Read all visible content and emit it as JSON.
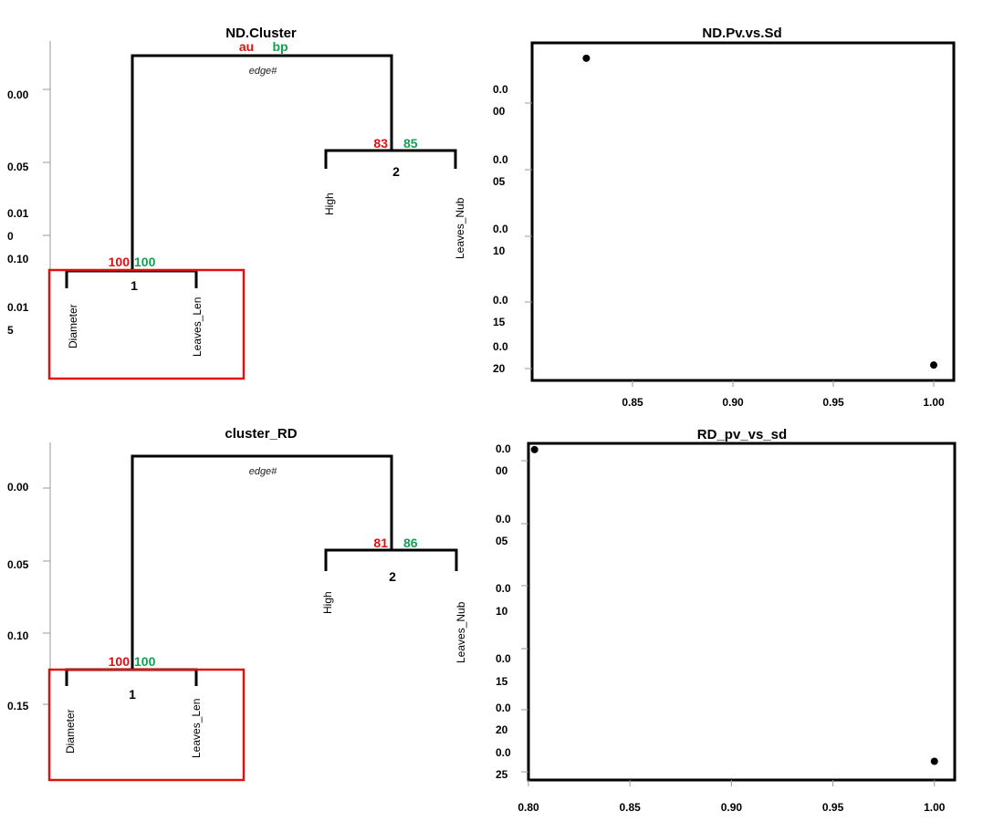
{
  "chart_data": [
    {
      "type": "dendrogram",
      "title": "ND.Cluster",
      "yticks": [
        "0.00",
        "0.05",
        "0.01\n0",
        "0.10",
        "0.01\n5"
      ],
      "edge_label": "edge#",
      "header_labels": {
        "au": "au",
        "bp": "bp"
      },
      "leaves": [
        "Diameter",
        "Leaves_Len",
        "High",
        "Leaves_Nub"
      ],
      "clusters": [
        {
          "id": "1",
          "au": "100",
          "bp": "100",
          "members": [
            "Diameter",
            "Leaves_Len"
          ]
        },
        {
          "id": "2",
          "au": "83",
          "bp": "85",
          "members": [
            "High",
            "Leaves_Nub"
          ]
        }
      ],
      "highlighted_cluster": "1"
    },
    {
      "type": "scatter",
      "title": "ND.Pv.vs.Sd",
      "xticks": [
        "0.85",
        "0.90",
        "0.95",
        "1.00"
      ],
      "yticks": [
        "0.0\n00",
        "0.0\n05",
        "0.0\n10",
        "0.0\n15",
        "0.0\n20"
      ],
      "xlim": [
        0.8,
        1.01
      ],
      "ylim": [
        0.021,
        -0.001
      ],
      "points": [
        {
          "x": 0.827,
          "y": 0.0
        },
        {
          "x": 1.0,
          "y": 0.02
        }
      ]
    },
    {
      "type": "dendrogram",
      "title": "cluster_RD",
      "yticks": [
        "0.00",
        "0.05",
        "0.10",
        "0.15"
      ],
      "edge_label": "edge#",
      "leaves": [
        "Diameter",
        "Leaves_Len",
        "High",
        "Leaves_Nub"
      ],
      "clusters": [
        {
          "id": "1",
          "au": "100",
          "bp": "100",
          "members": [
            "Diameter",
            "Leaves_Len"
          ]
        },
        {
          "id": "2",
          "au": "81",
          "bp": "86",
          "members": [
            "High",
            "Leaves_Nub"
          ]
        }
      ],
      "highlighted_cluster": "1"
    },
    {
      "type": "scatter",
      "title": "RD_pv_vs_sd",
      "xticks": [
        "0.80",
        "0.85",
        "0.90",
        "0.95",
        "1.00"
      ],
      "yticks": [
        "0.0\n00",
        "0.0\n05",
        "0.0\n10",
        "0.0\n15",
        "0.0\n20",
        "0.0\n25"
      ],
      "xlim": [
        0.8,
        1.01
      ],
      "ylim": [
        0.0265,
        -0.0005
      ],
      "points": [
        {
          "x": 0.803,
          "y": 0.0
        },
        {
          "x": 1.0,
          "y": 0.025
        }
      ]
    }
  ]
}
